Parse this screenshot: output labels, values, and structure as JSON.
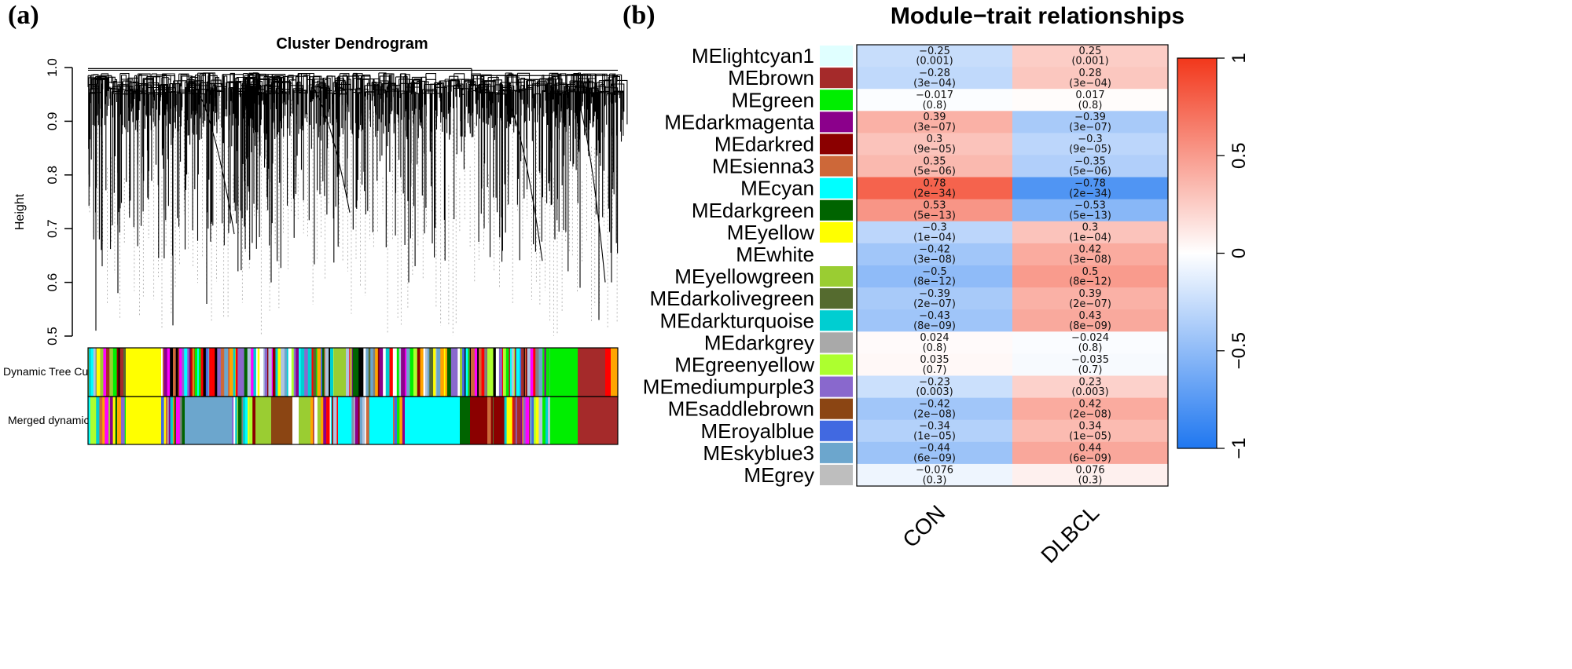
{
  "panel_a": {
    "label": "(a)",
    "chart_data": {
      "type": "dendrogram",
      "title": "Cluster Dendrogram",
      "ylabel": "Height",
      "ylim": [
        0.5,
        1.0
      ],
      "yticks": [
        "0.5",
        "0.6",
        "0.7",
        "0.8",
        "0.9",
        "1.0"
      ],
      "color_bars": [
        {
          "name": "Dynamic Tree Cut"
        },
        {
          "name": "Merged dynamic"
        }
      ]
    }
  },
  "panel_b": {
    "label": "(b)",
    "chart_data": {
      "type": "heatmap",
      "title": "Module−trait relationships",
      "columns": [
        "CON",
        "DLBCL"
      ],
      "colorbar": {
        "range": [
          -1,
          1
        ],
        "ticks": [
          "1",
          "0.5",
          "0",
          "−0.5",
          "−1"
        ],
        "low_color": "#1f77f0",
        "mid_color": "#ffffff",
        "high_color": "#f2371b"
      },
      "rows": [
        {
          "module": "MElightcyan1",
          "color": "#e0ffff",
          "con": -0.25,
          "dlbcl": 0.25,
          "con_r": "−0.25",
          "dlbcl_r": "0.25",
          "con_p": "(0.001)",
          "dlbcl_p": "(0.001)"
        },
        {
          "module": "MEbrown",
          "color": "#a52a2a",
          "con": -0.28,
          "dlbcl": 0.28,
          "con_r": "−0.28",
          "dlbcl_r": "0.28",
          "con_p": "(3e−04)",
          "dlbcl_p": "(3e−04)"
        },
        {
          "module": "MEgreen",
          "color": "#00ee00",
          "con": -0.017,
          "dlbcl": 0.017,
          "con_r": "−0.017",
          "dlbcl_r": "0.017",
          "con_p": "(0.8)",
          "dlbcl_p": "(0.8)"
        },
        {
          "module": "MEdarkmagenta",
          "color": "#8b008b",
          "con": 0.39,
          "dlbcl": -0.39,
          "con_r": "0.39",
          "dlbcl_r": "−0.39",
          "con_p": "(3e−07)",
          "dlbcl_p": "(3e−07)"
        },
        {
          "module": "MEdarkred",
          "color": "#8b0000",
          "con": 0.3,
          "dlbcl": -0.3,
          "con_r": "0.3",
          "dlbcl_r": "−0.3",
          "con_p": "(9e−05)",
          "dlbcl_p": "(9e−05)"
        },
        {
          "module": "MEsienna3",
          "color": "#cd6839",
          "con": 0.35,
          "dlbcl": -0.35,
          "con_r": "0.35",
          "dlbcl_r": "−0.35",
          "con_p": "(5e−06)",
          "dlbcl_p": "(5e−06)"
        },
        {
          "module": "MEcyan",
          "color": "#00ffff",
          "con": 0.78,
          "dlbcl": -0.78,
          "con_r": "0.78",
          "dlbcl_r": "−0.78",
          "con_p": "(2e−34)",
          "dlbcl_p": "(2e−34)"
        },
        {
          "module": "MEdarkgreen",
          "color": "#006400",
          "con": 0.53,
          "dlbcl": -0.53,
          "con_r": "0.53",
          "dlbcl_r": "−0.53",
          "con_p": "(5e−13)",
          "dlbcl_p": "(5e−13)"
        },
        {
          "module": "MEyellow",
          "color": "#ffff00",
          "con": -0.3,
          "dlbcl": 0.3,
          "con_r": "−0.3",
          "dlbcl_r": "0.3",
          "con_p": "(1e−04)",
          "dlbcl_p": "(1e−04)"
        },
        {
          "module": "MEwhite",
          "color": "#ffffff",
          "con": -0.42,
          "dlbcl": 0.42,
          "con_r": "−0.42",
          "dlbcl_r": "0.42",
          "con_p": "(3e−08)",
          "dlbcl_p": "(3e−08)"
        },
        {
          "module": "MEyellowgreen",
          "color": "#9acd32",
          "con": -0.5,
          "dlbcl": 0.5,
          "con_r": "−0.5",
          "dlbcl_r": "0.5",
          "con_p": "(8e−12)",
          "dlbcl_p": "(8e−12)"
        },
        {
          "module": "MEdarkolivegreen",
          "color": "#556b2f",
          "con": -0.39,
          "dlbcl": 0.39,
          "con_r": "−0.39",
          "dlbcl_r": "0.39",
          "con_p": "(2e−07)",
          "dlbcl_p": "(2e−07)"
        },
        {
          "module": "MEdarkturquoise",
          "color": "#00ced1",
          "con": -0.43,
          "dlbcl": 0.43,
          "con_r": "−0.43",
          "dlbcl_r": "0.43",
          "con_p": "(8e−09)",
          "dlbcl_p": "(8e−09)"
        },
        {
          "module": "MEdarkgrey",
          "color": "#a9a9a9",
          "con": 0.024,
          "dlbcl": -0.024,
          "con_r": "0.024",
          "dlbcl_r": "−0.024",
          "con_p": "(0.8)",
          "dlbcl_p": "(0.8)"
        },
        {
          "module": "MEgreenyellow",
          "color": "#adff2f",
          "con": 0.035,
          "dlbcl": -0.035,
          "con_r": "0.035",
          "dlbcl_r": "−0.035",
          "con_p": "(0.7)",
          "dlbcl_p": "(0.7)"
        },
        {
          "module": "MEmediumpurple3",
          "color": "#8968cd",
          "con": -0.23,
          "dlbcl": 0.23,
          "con_r": "−0.23",
          "dlbcl_r": "0.23",
          "con_p": "(0.003)",
          "dlbcl_p": "(0.003)"
        },
        {
          "module": "MEsaddlebrown",
          "color": "#8b4513",
          "con": -0.42,
          "dlbcl": 0.42,
          "con_r": "−0.42",
          "dlbcl_r": "0.42",
          "con_p": "(2e−08)",
          "dlbcl_p": "(2e−08)"
        },
        {
          "module": "MEroyalblue",
          "color": "#4169e1",
          "con": -0.34,
          "dlbcl": 0.34,
          "con_r": "−0.34",
          "dlbcl_r": "0.34",
          "con_p": "(1e−05)",
          "dlbcl_p": "(1e−05)"
        },
        {
          "module": "MEskyblue3",
          "color": "#6ca6cd",
          "con": -0.44,
          "dlbcl": 0.44,
          "con_r": "−0.44",
          "dlbcl_r": "0.44",
          "con_p": "(6e−09)",
          "dlbcl_p": "(6e−09)"
        },
        {
          "module": "MEgrey",
          "color": "#bebebe",
          "con": -0.076,
          "dlbcl": 0.076,
          "con_r": "−0.076",
          "dlbcl_r": "0.076",
          "con_p": "(0.3)",
          "dlbcl_p": "(0.3)"
        }
      ]
    }
  }
}
